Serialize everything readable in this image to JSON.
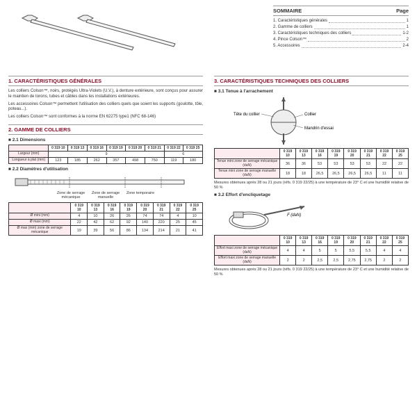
{
  "sommaire": {
    "title": "SOMMAIRE",
    "page": "Page",
    "rows": [
      {
        "t": "1. Caractéristiques générales",
        "p": "1"
      },
      {
        "t": "2. Gamme de colliers",
        "p": "1"
      },
      {
        "t": "3. Caractéristiques techniques des colliers",
        "p": "1-2"
      },
      {
        "t": "4. Pince Colson™",
        "p": "2"
      },
      {
        "t": "5. Accessoires",
        "p": "2-4"
      }
    ]
  },
  "s1": {
    "title": "1. CARACTÉRISTIQUES GÉNÉRALES",
    "p1": "Les colliers Colson™, noirs, protégés Ultra-Violets (U.V.), à denture extérieure, sont conçus pour assurer le maintien de torons, tubes et câbles dans les installations extérieures.",
    "p2": "Les accessoires Colson™ permettent l'utilisation des colliers quels que soient les supports (goulotte, tôle, poteau...).",
    "p3": "Les colliers Colson™ sont conformes à la norme EN 62275 type1 (NFC 68-146)"
  },
  "s2": {
    "title": "2. GAMME DE COLLIERS",
    "sub1": "2.1 Dimensions",
    "sub2": "2.2 Diamètres d'utilisation"
  },
  "s3": {
    "title": "3. CARACTÉRISTIQUES TECHNIQUES DES COLLIERS",
    "sub1": "3.1 Tenue à l'arrachement",
    "sub2": "3.2 Effort d'encliquetage"
  },
  "diag": {
    "tete": "Tête du collier",
    "collier": "Collier",
    "mandrin": "Mandrin d'essai",
    "flabel": "F (daN)"
  },
  "refs": [
    "0 319 10",
    "0 319 13",
    "0 319 16",
    "0 319 19",
    "0 319 20",
    "0 319 21",
    "0 319 22",
    "0 319 25"
  ],
  "dims": {
    "largeur": {
      "label": "Largeur (mm)",
      "v": [
        "9",
        "",
        "",
        "",
        "",
        "",
        "6",
        ""
      ],
      "span1": 6,
      "span2": 2,
      "val1": "9",
      "val2": "6"
    },
    "longueur": {
      "label": "Longueur à plat (mm)",
      "v": [
        "123",
        "185",
        "262",
        "357",
        "498",
        "750",
        "119",
        "180"
      ]
    }
  },
  "zones": {
    "z1": "Zone de serrage mécanique",
    "z2": "Zone de serrage manuelle",
    "z3": "Zone temporaire"
  },
  "diam": {
    "mini": {
      "label": "Ø mini (mm)",
      "v": [
        "4",
        "10",
        "26",
        "26",
        "74",
        "74",
        "4",
        "10"
      ]
    },
    "maxi": {
      "label": "Ø maxi (mm)",
      "v": [
        "22",
        "42",
        "62",
        "92",
        "140",
        "220",
        "25",
        "45"
      ]
    },
    "maxmec": {
      "label": "Ø max (mm) zone de serrage mécanique",
      "v": [
        "19",
        "39",
        "56",
        "86",
        "134",
        "214",
        "21",
        "41"
      ]
    }
  },
  "tenue": {
    "mec": {
      "label": "Tenue mini zone de serrage mécanique (daN)",
      "v": [
        "36",
        "36",
        "53",
        "53",
        "53",
        "53",
        "22",
        "22"
      ]
    },
    "man": {
      "label": "Tenue mini zone de serrage manuelle (daN)",
      "v": [
        "18",
        "18",
        "26,5",
        "26,5",
        "26,5",
        "26,5",
        "11",
        "11"
      ]
    }
  },
  "effort": {
    "mec": {
      "label": "Effort maxi zone de serrage mécanique (daN)",
      "v": [
        "4",
        "4",
        "5",
        "5",
        "5,5",
        "5,5",
        "4",
        "4"
      ]
    },
    "man": {
      "label": "Effort maxi zone de serrage manuelle (daN)",
      "v": [
        "2",
        "2",
        "2,5",
        "2,5",
        "2,75",
        "2,75",
        "2",
        "2"
      ]
    }
  },
  "note": "Mesures obtenues après 28 ou 21 jours (réfs. 0 319 22/25) à une température de 23° C et une humidité relative de 50 %"
}
